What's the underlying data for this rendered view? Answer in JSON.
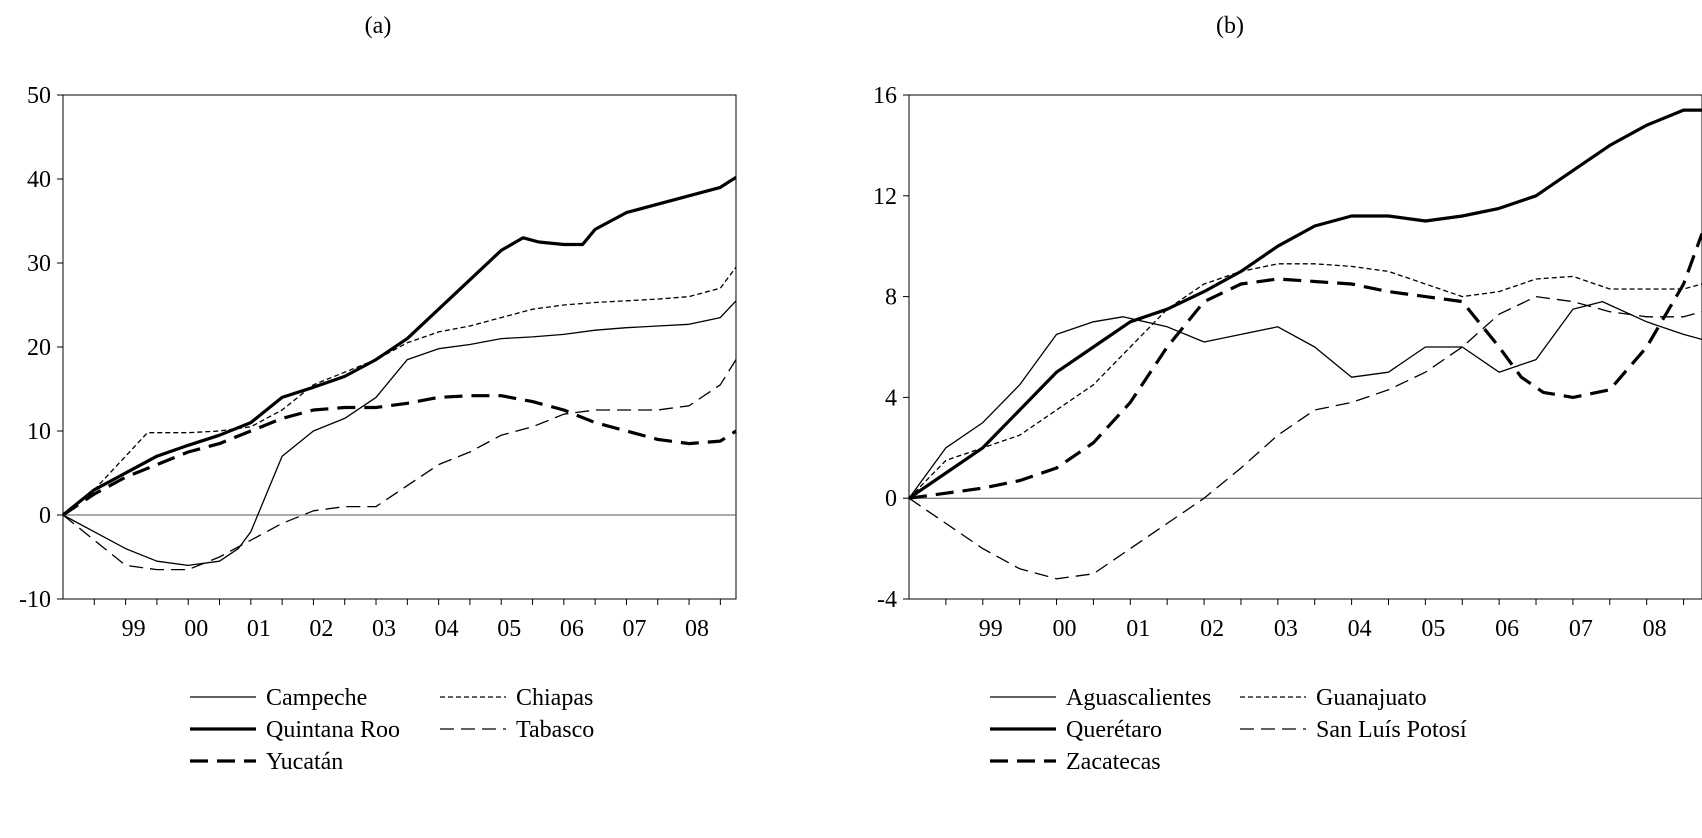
{
  "chart_data": [
    {
      "type": "line",
      "title": "(a)",
      "ylim": [
        -10,
        50
      ],
      "yticks": [
        -10,
        0,
        10,
        20,
        30,
        40,
        50
      ],
      "xlim": [
        1998.0,
        2008.75
      ],
      "xticklabels": [
        {
          "x": 1999.0,
          "label": "99"
        },
        {
          "x": 2000.0,
          "label": "00"
        },
        {
          "x": 2001.0,
          "label": "01"
        },
        {
          "x": 2002.0,
          "label": "02"
        },
        {
          "x": 2003.0,
          "label": "03"
        },
        {
          "x": 2004.0,
          "label": "04"
        },
        {
          "x": 2005.0,
          "label": "05"
        },
        {
          "x": 2006.0,
          "label": "06"
        },
        {
          "x": 2007.0,
          "label": "07"
        },
        {
          "x": 2008.0,
          "label": "08"
        }
      ],
      "zero_line": true,
      "series": [
        {
          "name": "Campeche",
          "style": "thin-solid",
          "x": [
            1998.0,
            1998.5,
            1999.0,
            1999.5,
            2000.0,
            2000.5,
            2000.8,
            2001.0,
            2001.5,
            2002.0,
            2002.5,
            2003.0,
            2003.5,
            2004.0,
            2004.5,
            2005.0,
            2005.5,
            2006.0,
            2006.5,
            2007.0,
            2007.5,
            2008.0,
            2008.5,
            2008.75
          ],
          "y": [
            0,
            -2,
            -4,
            -5.5,
            -6,
            -5.5,
            -4,
            -2,
            7,
            10,
            11.5,
            14,
            18.5,
            19.8,
            20.3,
            21,
            21.2,
            21.5,
            22,
            22.3,
            22.5,
            22.7,
            23.5,
            25.5
          ]
        },
        {
          "name": "Chiapas",
          "style": "short-dash",
          "x": [
            1998.0,
            1998.5,
            1999.0,
            1999.35,
            1999.5,
            2000.0,
            2000.5,
            2001.0,
            2001.5,
            2002.0,
            2002.5,
            2003.0,
            2003.5,
            2004.0,
            2004.5,
            2005.0,
            2005.5,
            2006.0,
            2006.5,
            2007.0,
            2007.5,
            2008.0,
            2008.5,
            2008.75
          ],
          "y": [
            0,
            3,
            7,
            9.8,
            9.8,
            9.8,
            10,
            10.5,
            12.5,
            15.5,
            17,
            18.5,
            20.5,
            21.8,
            22.5,
            23.5,
            24.5,
            25,
            25.3,
            25.5,
            25.7,
            26,
            27,
            29.5
          ]
        },
        {
          "name": "Quintana Roo",
          "style": "thick-solid",
          "x": [
            1998.0,
            1998.5,
            1999.0,
            1999.5,
            2000.0,
            2000.5,
            2001.0,
            2001.5,
            2002.0,
            2002.5,
            2003.0,
            2003.5,
            2004.0,
            2004.5,
            2005.0,
            2005.35,
            2005.6,
            2006.0,
            2006.3,
            2006.5,
            2007.0,
            2007.5,
            2008.0,
            2008.5,
            2008.75
          ],
          "y": [
            0,
            3,
            5,
            7,
            8.3,
            9.5,
            11,
            14,
            15.2,
            16.5,
            18.5,
            21,
            24.5,
            28,
            31.5,
            33,
            32.5,
            32.2,
            32.2,
            34,
            36,
            37,
            38,
            39,
            40.2
          ]
        },
        {
          "name": "Tabasco",
          "style": "long-dash",
          "x": [
            1998.0,
            1998.5,
            1999.0,
            1999.5,
            2000.0,
            2000.5,
            2001.0,
            2001.5,
            2002.0,
            2002.5,
            2003.0,
            2003.5,
            2004.0,
            2004.5,
            2005.0,
            2005.5,
            2006.0,
            2006.5,
            2007.0,
            2007.5,
            2008.0,
            2008.5,
            2008.75
          ],
          "y": [
            0,
            -3,
            -6,
            -6.5,
            -6.5,
            -5,
            -3,
            -1,
            0.5,
            1,
            1,
            3.5,
            6,
            7.5,
            9.5,
            10.5,
            12,
            12.5,
            12.5,
            12.5,
            13,
            15.5,
            18.5
          ]
        },
        {
          "name": "Yucatán",
          "style": "thick-dash",
          "x": [
            1998.0,
            1998.5,
            1999.0,
            1999.5,
            2000.0,
            2000.5,
            2001.0,
            2001.5,
            2002.0,
            2002.5,
            2003.0,
            2003.5,
            2004.0,
            2004.5,
            2005.0,
            2005.5,
            2006.0,
            2006.5,
            2007.0,
            2007.5,
            2008.0,
            2008.5,
            2008.75
          ],
          "y": [
            0,
            2.5,
            4.5,
            6,
            7.5,
            8.5,
            10,
            11.5,
            12.5,
            12.8,
            12.8,
            13.3,
            14,
            14.2,
            14.2,
            13.5,
            12.5,
            11,
            10,
            9,
            8.5,
            8.8,
            10
          ]
        }
      ],
      "legend": {
        "placement": "bottom",
        "columns": 2
      }
    },
    {
      "type": "line",
      "title": "(b)",
      "ylim": [
        -4,
        16
      ],
      "yticks": [
        -4,
        0,
        4,
        8,
        12,
        16
      ],
      "xlim": [
        1998.0,
        2008.75
      ],
      "xticklabels": [
        {
          "x": 1999.0,
          "label": "99"
        },
        {
          "x": 2000.0,
          "label": "00"
        },
        {
          "x": 2001.0,
          "label": "01"
        },
        {
          "x": 2002.0,
          "label": "02"
        },
        {
          "x": 2003.0,
          "label": "03"
        },
        {
          "x": 2004.0,
          "label": "04"
        },
        {
          "x": 2005.0,
          "label": "05"
        },
        {
          "x": 2006.0,
          "label": "06"
        },
        {
          "x": 2007.0,
          "label": "07"
        },
        {
          "x": 2008.0,
          "label": "08"
        }
      ],
      "zero_line": true,
      "series": [
        {
          "name": "Aguascalientes",
          "style": "thin-solid",
          "x": [
            1998.0,
            1998.5,
            1999.0,
            1999.5,
            2000.0,
            2000.5,
            2000.9,
            2001.5,
            2002.0,
            2002.5,
            2003.0,
            2003.5,
            2004.0,
            2004.5,
            2005.0,
            2005.5,
            2006.0,
            2006.5,
            2007.0,
            2007.4,
            2008.0,
            2008.5,
            2008.75
          ],
          "y": [
            0,
            2,
            3,
            4.5,
            6.5,
            7,
            7.2,
            6.8,
            6.2,
            6.5,
            6.8,
            6,
            4.8,
            5,
            6,
            6,
            5,
            5.5,
            7.5,
            7.8,
            7,
            6.5,
            6.3
          ]
        },
        {
          "name": "Guanajuato",
          "style": "short-dash",
          "x": [
            1998.0,
            1998.5,
            1999.0,
            1999.5,
            2000.0,
            2000.5,
            2001.0,
            2001.5,
            2002.0,
            2002.5,
            2003.0,
            2003.5,
            2004.0,
            2004.5,
            2005.0,
            2005.5,
            2006.0,
            2006.5,
            2007.0,
            2007.5,
            2008.0,
            2008.5,
            2008.75
          ],
          "y": [
            0,
            1.5,
            2,
            2.5,
            3.5,
            4.5,
            6,
            7.5,
            8.5,
            9,
            9.3,
            9.3,
            9.2,
            9,
            8.5,
            8,
            8.2,
            8.7,
            8.8,
            8.3,
            8.3,
            8.3,
            8.5
          ]
        },
        {
          "name": "Querétaro",
          "style": "thick-solid",
          "x": [
            1998.0,
            1998.5,
            1999.0,
            1999.5,
            2000.0,
            2000.5,
            2001.0,
            2001.5,
            2002.0,
            2002.5,
            2003.0,
            2003.5,
            2004.0,
            2004.5,
            2005.0,
            2005.5,
            2006.0,
            2006.5,
            2007.0,
            2007.5,
            2008.0,
            2008.5,
            2008.75
          ],
          "y": [
            0,
            1,
            2,
            3.5,
            5,
            6,
            7,
            7.5,
            8.2,
            9,
            10,
            10.8,
            11.2,
            11.2,
            11,
            11.2,
            11.5,
            12,
            13,
            14,
            14.8,
            15.4,
            15.4
          ]
        },
        {
          "name": "San Luís Potosí",
          "style": "long-dash",
          "x": [
            1998.0,
            1998.5,
            1999.0,
            1999.5,
            2000.0,
            2000.5,
            2001.0,
            2001.5,
            2002.0,
            2002.5,
            2003.0,
            2003.5,
            2004.0,
            2004.5,
            2005.0,
            2005.5,
            2006.0,
            2006.5,
            2007.0,
            2007.5,
            2008.0,
            2008.5,
            2008.75
          ],
          "y": [
            0,
            -1,
            -2,
            -2.8,
            -3.2,
            -3,
            -2,
            -1,
            0,
            1.2,
            2.5,
            3.5,
            3.8,
            4.3,
            5,
            6,
            7.3,
            8,
            7.8,
            7.4,
            7.2,
            7.2,
            7.4
          ]
        },
        {
          "name": "Zacatecas",
          "style": "thick-dash",
          "x": [
            1998.0,
            1998.5,
            1999.0,
            1999.5,
            2000.0,
            2000.5,
            2001.0,
            2001.5,
            2002.0,
            2002.5,
            2003.0,
            2003.5,
            2004.0,
            2004.5,
            2005.0,
            2005.5,
            2006.0,
            2006.3,
            2006.6,
            2007.0,
            2007.5,
            2008.0,
            2008.5,
            2008.75
          ],
          "y": [
            0,
            0.2,
            0.4,
            0.7,
            1.2,
            2.2,
            3.8,
            6,
            7.8,
            8.5,
            8.7,
            8.6,
            8.5,
            8.2,
            8,
            7.8,
            6,
            4.8,
            4.2,
            4,
            4.3,
            6,
            8.5,
            10.5
          ]
        }
      ],
      "legend": {
        "placement": "bottom",
        "columns": 2
      }
    }
  ]
}
